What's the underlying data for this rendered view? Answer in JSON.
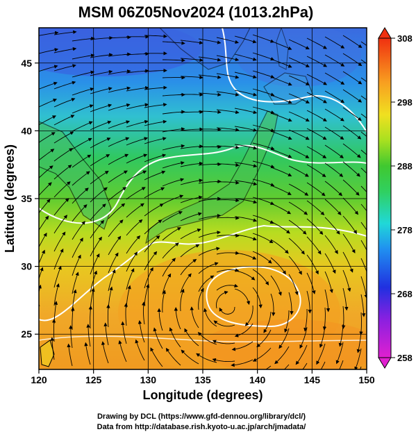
{
  "title": "MSM 06Z05Nov2024 (1013.2hPa)",
  "xlabel": "Longitude (degrees)",
  "ylabel": "Latitude  (degrees)",
  "xticks": [
    120,
    125,
    130,
    135,
    140,
    145,
    150
  ],
  "yticks": [
    25,
    30,
    35,
    40,
    45
  ],
  "xlim": [
    120,
    150
  ],
  "ylim": [
    22.4,
    47.6
  ],
  "colorbar": {
    "min": 258,
    "max": 308,
    "ticks": [
      258,
      268,
      278,
      288,
      298,
      308
    ]
  },
  "credits": {
    "line1": "Drawing by DCL (https://www.gfd-dennou.org/library/dcl/)",
    "line2": "Data from http://database.rish.kyoto-u.ac.jp/arch/jmadata/"
  },
  "colors": {
    "cold": "#2a55e0",
    "cool": "#33cccc",
    "mild": "#55cc33",
    "warm": "#e8cc20",
    "hot": "#f09020",
    "contour": "#ffffff",
    "streamline": "#000000"
  }
}
